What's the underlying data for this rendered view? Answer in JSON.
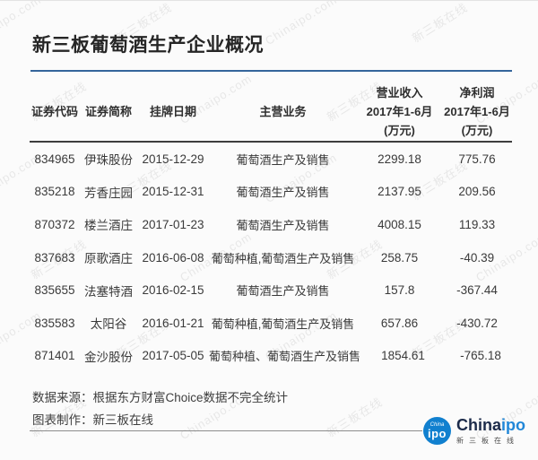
{
  "title": "新三板葡萄酒生产企业概况",
  "watermark": {
    "texts": [
      "Chinaipo.com",
      "新三板在线"
    ]
  },
  "table": {
    "headers": [
      {
        "line1": "",
        "line2": "证券代码",
        "line3": ""
      },
      {
        "line1": "",
        "line2": "证券简称",
        "line3": ""
      },
      {
        "line1": "",
        "line2": "挂牌日期",
        "line3": ""
      },
      {
        "line1": "",
        "line2": "主营业务",
        "line3": ""
      },
      {
        "line1": "营业收入",
        "line2": "2017年1-6月",
        "line3": "(万元)"
      },
      {
        "line1": "净利润",
        "line2": "2017年1-6月",
        "line3": "(万元)"
      }
    ]
  },
  "chart_data": {
    "type": "table",
    "title": "新三板葡萄酒生产企业概况",
    "columns": [
      "证券代码",
      "证券简称",
      "挂牌日期",
      "主营业务",
      "营业收入 2017年1-6月 (万元)",
      "净利润 2017年1-6月 (万元)"
    ],
    "rows": [
      [
        "834965",
        "伊珠股份",
        "2015-12-29",
        "葡萄酒生产及销售",
        "2299.18",
        "775.76"
      ],
      [
        "835218",
        "芳香庄园",
        "2015-12-31",
        "葡萄酒生产及销售",
        "2137.95",
        "209.56"
      ],
      [
        "870372",
        "楼兰酒庄",
        "2017-01-23",
        "葡萄酒生产及销售",
        "4008.15",
        "119.33"
      ],
      [
        "837683",
        "原歌酒庄",
        "2016-06-08",
        "葡萄种植,葡萄酒生产及销售",
        "258.75",
        "-40.39"
      ],
      [
        "835655",
        "法塞特酒",
        "2016-02-15",
        "葡萄酒生产及销售",
        "157.8",
        "-367.44"
      ],
      [
        "835583",
        "太阳谷",
        "2016-01-21",
        "葡萄种植,葡萄酒生产及销售",
        "657.86",
        "-430.72"
      ],
      [
        "871401",
        "金沙股份",
        "2017-05-05",
        "葡萄种植、葡萄酒生产及销售",
        "1854.61",
        "-765.18"
      ]
    ],
    "source_note": "数据来源：根据东方财富Choice数据不完全统计",
    "credit_note": "图表制作：新三板在线"
  },
  "notes": {
    "source": "数据来源：根据东方财富Choice数据不完全统计",
    "credit": "图表制作：新三板在线"
  },
  "logo": {
    "badge_top": "China",
    "badge_main": "ipo",
    "brand_part1": "China",
    "brand_part2": "ipo",
    "tagline": "新三板在线"
  },
  "colors": {
    "accent_blue": "#34659b",
    "header_rule": "#3d3d3d",
    "logo_circle": "#1180cf",
    "brand_dark": "#1c2b4a",
    "brand_blue": "#2187d8",
    "background": "#fbfbfb"
  }
}
